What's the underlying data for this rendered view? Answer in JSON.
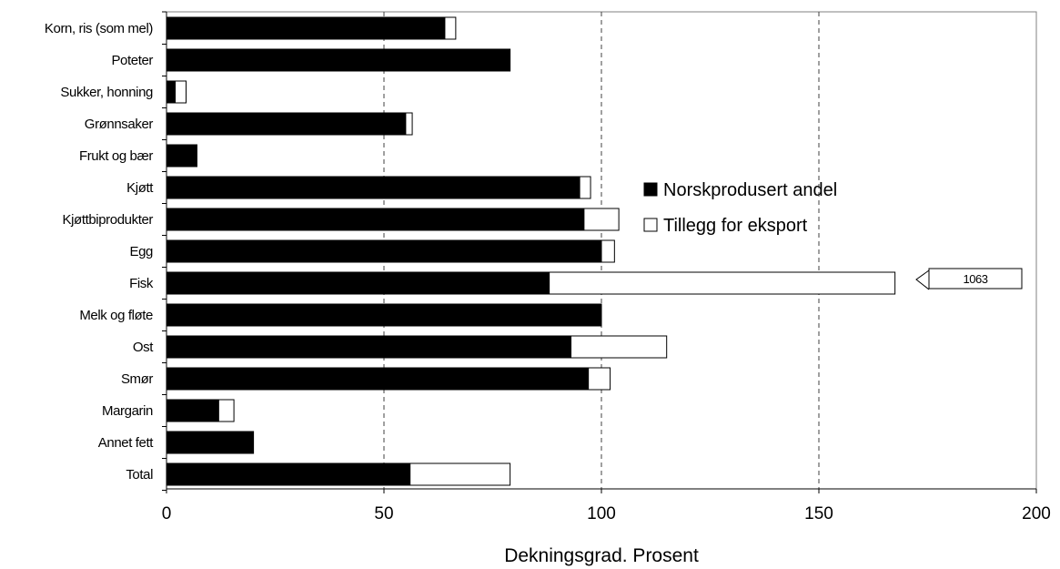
{
  "chart_data": {
    "type": "bar",
    "orientation": "horizontal",
    "stacked": true,
    "categories": [
      "Korn, ris (som mel)",
      "Poteter",
      "Sukker, honning",
      "Grønnsaker",
      "Frukt og bær",
      "Kjøtt",
      "Kjøttbiprodukter",
      "Egg",
      "Fisk",
      "Melk og fløte",
      "Ost",
      "Smør",
      "Margarin",
      "Annet fett",
      "Total"
    ],
    "series": [
      {
        "name": "Norskprodusert andel",
        "color": "#000000",
        "values": [
          64,
          79,
          2,
          55,
          7,
          95,
          96,
          100,
          88,
          100,
          93,
          97,
          12,
          20,
          56
        ]
      },
      {
        "name": "Tillegg for eksport",
        "color": "#ffffff",
        "values": [
          2.5,
          0,
          2.5,
          1.5,
          0,
          2.5,
          8,
          3,
          975,
          0,
          22,
          5,
          3.5,
          0,
          23
        ]
      }
    ],
    "xlabel": "Dekningsgrad. Prosent",
    "xlim": [
      0,
      200
    ],
    "xticks": [
      "0",
      "50",
      "100",
      "150",
      "200"
    ],
    "xtick_values": [
      0,
      50,
      100,
      150,
      200
    ],
    "gridlines": "vertical dashed",
    "legend_position": "center-right",
    "axis_break": {
      "category": "Fisk",
      "total_value": 1063,
      "label": "1063"
    }
  }
}
